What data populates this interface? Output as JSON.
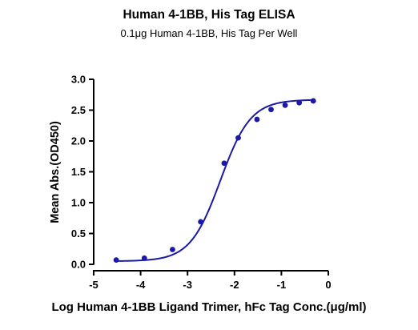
{
  "chart_data": {
    "type": "scatter",
    "title": "Human 4-1BB, His Tag ELISA",
    "subtitle": "0.1μg Human 4-1BB, His Tag Per Well",
    "xlabel": "Log Human 4-1BB Ligand Trimer, hFc Tag Conc.(μg/ml)",
    "ylabel": "Mean Abs.(OD450)",
    "xlim": [
      -5,
      0
    ],
    "ylim": [
      0,
      3.0
    ],
    "xticks": [
      "-5",
      "-4",
      "-3",
      "-2",
      "-1",
      "0"
    ],
    "yticks": [
      "0.0",
      "0.5",
      "1.0",
      "1.5",
      "2.0",
      "2.5",
      "3.0"
    ],
    "grid": false,
    "series": [
      {
        "x": [
          -4.52,
          -3.92,
          -3.32,
          -2.72,
          -2.22,
          -1.92,
          -1.52,
          -1.22,
          -0.92,
          -0.62,
          -0.32
        ],
        "y": [
          0.07,
          0.1,
          0.24,
          0.69,
          1.64,
          2.05,
          2.35,
          2.51,
          2.58,
          2.62,
          2.65
        ],
        "color": "#1a1aa6",
        "fit": "sigmoid",
        "fit_params": {
          "bottom": 0.05,
          "top": 2.67,
          "logEC50": -2.3,
          "hill": 1.35
        }
      }
    ]
  }
}
